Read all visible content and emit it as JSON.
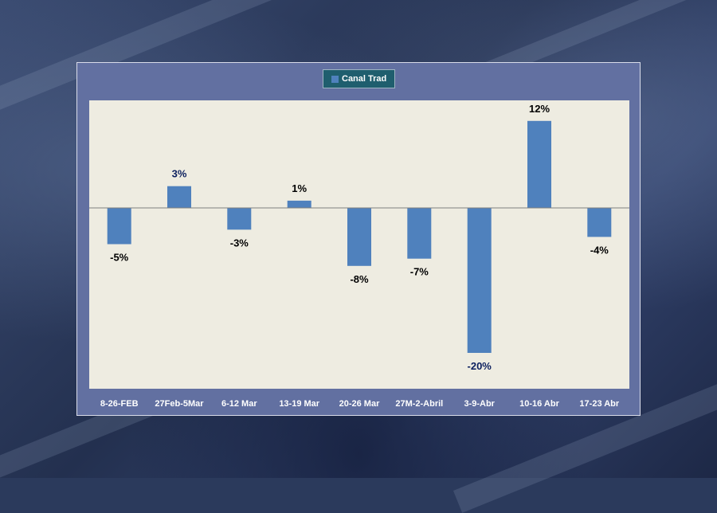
{
  "chart_data": {
    "type": "bar",
    "title": "",
    "xlabel": "",
    "ylabel": "",
    "legend": {
      "entries": [
        "Canal Trad"
      ],
      "position": "top"
    },
    "categories": [
      "8-26-FEB",
      "27Feb-5Mar",
      "6-12 Mar",
      "13-19 Mar",
      "20-26 Mar",
      "27M-2-Abril",
      "3-9-Abr",
      "10-16 Abr",
      "17-23 Abr"
    ],
    "series": [
      {
        "name": "Canal Trad",
        "color": "#4f81bd",
        "values": [
          -5,
          3,
          -3,
          1,
          -8,
          -7,
          -20,
          12,
          -4
        ],
        "labels": [
          "-5%",
          "3%",
          "-3%",
          "1%",
          "-8%",
          "-7%",
          "-20%",
          "12%",
          "-4%"
        ],
        "label_colors": [
          "#000000",
          "#0b1f5e",
          "#000000",
          "#000000",
          "#000000",
          "#000000",
          "#0b1f5e",
          "#000000",
          "#000000"
        ]
      }
    ],
    "ylim": [
      -25,
      15
    ],
    "grid": false
  },
  "colors": {
    "panel": "#6270a1",
    "plot_bg": "#eeece1",
    "legend_bg": "#1f5e6e",
    "axis_line": "#7f7f7f"
  }
}
